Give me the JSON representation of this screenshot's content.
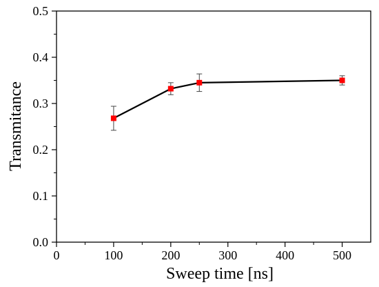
{
  "chart_data": {
    "type": "line",
    "title": "",
    "xlabel": "Sweep time [ns]",
    "ylabel": "Transmitance",
    "xlim": [
      0,
      550
    ],
    "ylim": [
      0,
      0.5
    ],
    "xticks": [
      0,
      100,
      200,
      300,
      400,
      500
    ],
    "xtick_labels": [
      "0",
      "100",
      "200",
      "300",
      "400",
      "500"
    ],
    "yticks": [
      0,
      0.1,
      0.2,
      0.3,
      0.4,
      0.5
    ],
    "ytick_labels": [
      "0.0",
      "0.1",
      "0.2",
      "0.3",
      "0.4",
      "0.5"
    ],
    "grid": false,
    "legend": "none",
    "series": [
      {
        "x": [
          100,
          200,
          250,
          500
        ],
        "y": [
          0.268,
          0.332,
          0.345,
          0.35
        ],
        "yerr": [
          0.026,
          0.013,
          0.019,
          0.01
        ],
        "line_color": "#000000",
        "marker_color": "#ff0000",
        "marker": "square"
      }
    ]
  }
}
